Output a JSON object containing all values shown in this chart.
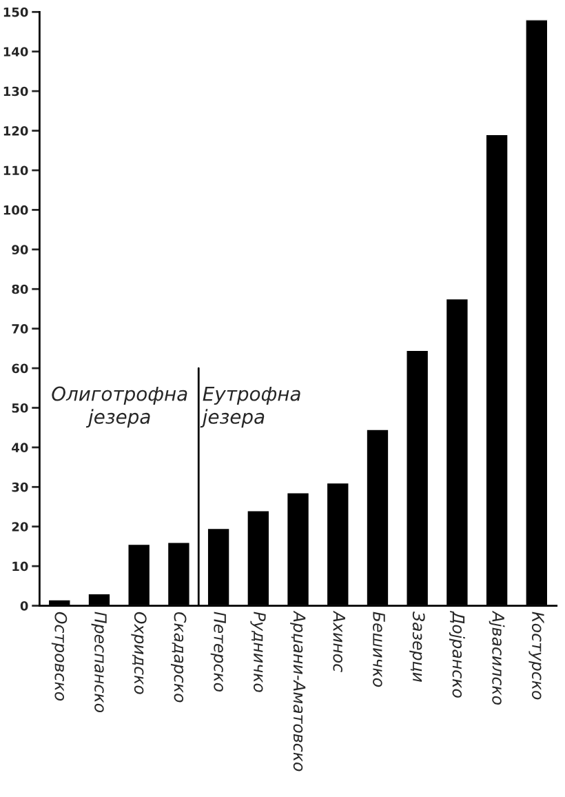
{
  "chart_data": {
    "type": "bar",
    "categories": [
      "Островско",
      "Преспанско",
      "Охридско",
      "Скадарско",
      "Петерско",
      "Рудничко",
      "Арџани-Аматовско",
      "Ахинос",
      "Бешичко",
      "Зазерци",
      "Дојранско",
      "Ајвасилско",
      "Костурско"
    ],
    "values": [
      1.5,
      3,
      15.5,
      16,
      19.5,
      24,
      28.5,
      31,
      44.5,
      64.5,
      77.5,
      119,
      148
    ],
    "color": "#000000",
    "ylim": [
      0,
      150
    ],
    "yticks": [
      0,
      10,
      20,
      30,
      40,
      50,
      60,
      70,
      80,
      90,
      100,
      110,
      120,
      130,
      140,
      150
    ],
    "grid": false,
    "annotations": [
      "Олиготрофна\nјезера",
      "Еутрофна\nјезера"
    ]
  }
}
